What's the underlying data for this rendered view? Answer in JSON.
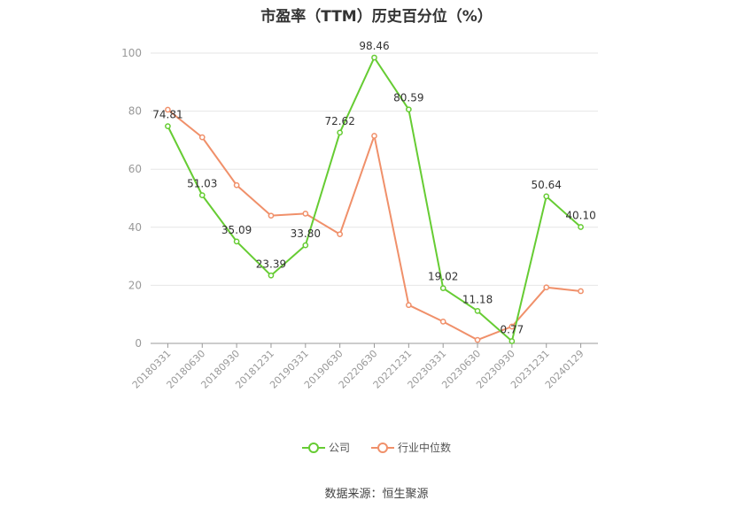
{
  "title": "市盈率（TTM）历史百分位（%）",
  "source": "数据来源：恒生聚源",
  "colors": {
    "company": "#66cc33",
    "industry": "#f0906a",
    "grid": "#e6e6e6",
    "axis": "#999999"
  },
  "chart_data": {
    "type": "line",
    "title": "市盈率（TTM）历史百分位（%）",
    "categories": [
      "20180331",
      "20180630",
      "20180930",
      "20181231",
      "20190331",
      "20190630",
      "20220630",
      "20221231",
      "20230331",
      "20230630",
      "20230930",
      "20231231",
      "20240129"
    ],
    "ylim": [
      0,
      100
    ],
    "yticks": [
      0,
      20,
      40,
      60,
      80,
      100
    ],
    "grid": true,
    "legend_position": "bottom",
    "series": [
      {
        "name": "公司",
        "color": "#66cc33",
        "values": [
          74.81,
          51.03,
          35.09,
          23.39,
          33.8,
          72.62,
          98.46,
          80.59,
          19.02,
          11.18,
          0.77,
          50.64,
          40.1
        ],
        "labels": [
          "74.81",
          "51.03",
          "35.09",
          "23.39",
          "33.80",
          "72.62",
          "98.46",
          "80.59",
          "19.02",
          "11.18",
          "0.77",
          "50.64",
          "40.10"
        ]
      },
      {
        "name": "行业中位数",
        "color": "#f0906a",
        "values": [
          80.5,
          71.0,
          54.5,
          44.0,
          44.7,
          37.6,
          71.5,
          13.2,
          7.5,
          1.2,
          5.8,
          19.3,
          18.0
        ]
      }
    ]
  }
}
